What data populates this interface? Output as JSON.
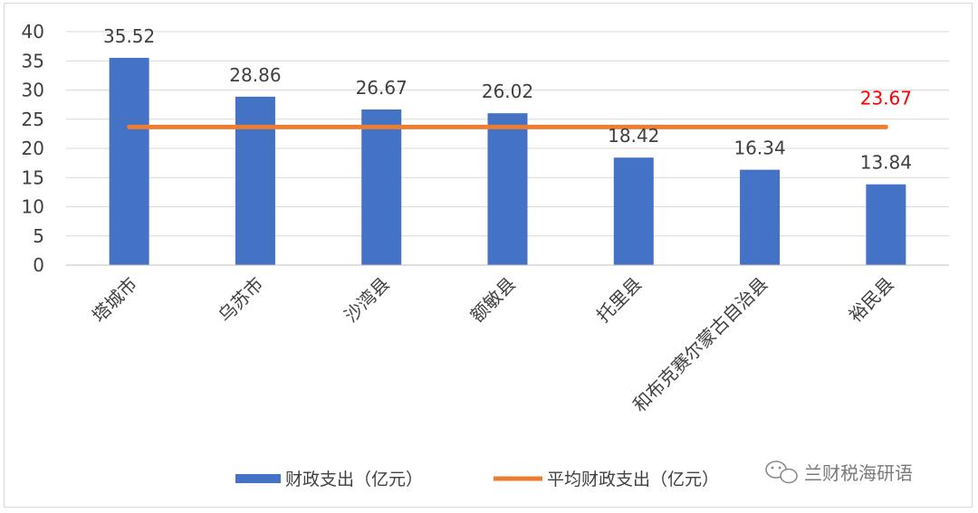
{
  "chart_data": {
    "type": "bar",
    "categories": [
      "塔城市",
      "乌苏市",
      "沙湾县",
      "额敏县",
      "托里县",
      "和布克赛尔蒙古自治县",
      "裕民县"
    ],
    "series": [
      {
        "name": "财政支出（亿元）",
        "type": "bar",
        "values": [
          35.52,
          28.86,
          26.67,
          26.02,
          18.42,
          16.34,
          13.84
        ],
        "color": "#4472C4"
      },
      {
        "name": "平均财政支出（亿元）",
        "type": "line",
        "values": [
          23.67,
          23.67,
          23.67,
          23.67,
          23.67,
          23.67,
          23.67
        ],
        "color": "#ED7D31",
        "label": "23.67",
        "label_color": "#FF0000"
      }
    ],
    "yticks": [
      "0",
      "5",
      "10",
      "15",
      "20",
      "25",
      "30",
      "35",
      "40"
    ],
    "ylim": [
      0,
      40
    ],
    "grid": true,
    "legend_position": "bottom"
  },
  "watermark": {
    "text": "兰财税海研语",
    "icon": "wechat-icon",
    "color": "#7a7a7a"
  }
}
